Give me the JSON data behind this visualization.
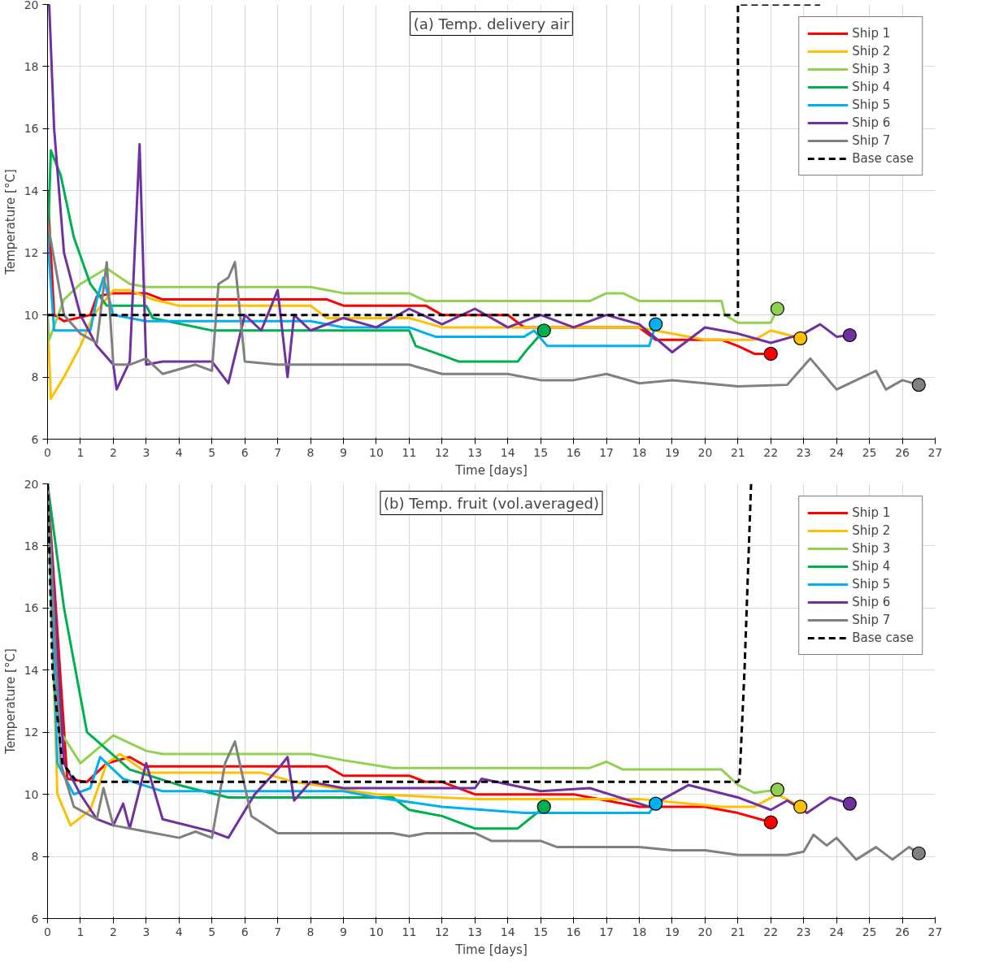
{
  "chart_data": [
    {
      "type": "line",
      "title": "(a) Temp. delivery air",
      "xlabel": "Time [days]",
      "ylabel": "Temperature [°C]",
      "xlim": [
        0,
        27
      ],
      "ylim": [
        6,
        20
      ],
      "xticks": [
        0,
        1,
        2,
        3,
        4,
        5,
        6,
        7,
        8,
        9,
        10,
        11,
        12,
        13,
        14,
        15,
        16,
        17,
        18,
        19,
        20,
        21,
        22,
        23,
        24,
        25,
        26,
        27
      ],
      "yticks": [
        6,
        8,
        10,
        12,
        14,
        16,
        18,
        20
      ],
      "grid": true,
      "legend": "top right",
      "series": [
        {
          "name": "Ship 1",
          "color": "#ff0000",
          "x": [
            0,
            0.2,
            0.5,
            1.3,
            1.5,
            2,
            3,
            3.5,
            8.5,
            9,
            11.5,
            12,
            14,
            14.5,
            18,
            18.5,
            20.5,
            21,
            21.5,
            22
          ],
          "values": [
            14,
            10,
            9.8,
            10,
            10.6,
            10.7,
            10.7,
            10.5,
            10.5,
            10.3,
            10.3,
            10,
            10,
            9.6,
            9.6,
            9.2,
            9.2,
            9,
            8.75,
            8.75
          ]
        },
        {
          "name": "Ship 2",
          "color": "#ffc000",
          "x": [
            0,
            0.1,
            0.5,
            1,
            1.4,
            2,
            2.5,
            3.2,
            4,
            8,
            8.5,
            11,
            12,
            18,
            20,
            21.5,
            22,
            22.9
          ],
          "values": [
            10,
            7.3,
            8,
            9,
            10,
            10.8,
            10.8,
            10.5,
            10.3,
            10.3,
            9.9,
            9.9,
            9.6,
            9.6,
            9.2,
            9.2,
            9.5,
            9.25
          ]
        },
        {
          "name": "Ship 3",
          "color": "#92d050",
          "x": [
            0,
            0.05,
            0.5,
            1,
            1.8,
            2.5,
            3,
            8,
            8.5,
            9,
            11,
            11.5,
            16.5,
            17,
            17.5,
            18,
            20.5,
            20.6,
            21,
            22,
            22.2
          ],
          "values": [
            10,
            9.2,
            10.5,
            11,
            11.5,
            11,
            10.9,
            10.9,
            10.8,
            10.7,
            10.7,
            10.45,
            10.45,
            10.7,
            10.7,
            10.45,
            10.45,
            10,
            9.75,
            9.75,
            10.2
          ]
        },
        {
          "name": "Ship 4",
          "color": "#00b050",
          "x": [
            0,
            0.1,
            0.4,
            0.8,
            1.3,
            1.8,
            3,
            3.2,
            5,
            11,
            11.2,
            12,
            12.5,
            14.3,
            14.6,
            15.1
          ],
          "values": [
            12,
            15.3,
            14.5,
            12.5,
            11,
            10.3,
            10.3,
            9.9,
            9.5,
            9.5,
            9,
            8.7,
            8.5,
            8.5,
            8.9,
            9.5
          ]
        },
        {
          "name": "Ship 5",
          "color": "#00b0f0",
          "x": [
            0,
            0.2,
            1.3,
            1.5,
            1.7,
            2,
            3,
            8,
            9,
            11,
            11.8,
            14.5,
            14.8,
            15.2,
            18.3,
            18.5
          ],
          "values": [
            12.5,
            9.5,
            9.5,
            10.5,
            11.2,
            10,
            9.8,
            9.8,
            9.6,
            9.6,
            9.3,
            9.3,
            9.5,
            9,
            9,
            9.7
          ]
        },
        {
          "name": "Ship 6",
          "color": "#7030a0",
          "x": [
            0,
            0.05,
            0.2,
            0.5,
            1,
            1.5,
            2,
            2.1,
            2.5,
            2.8,
            3,
            3.5,
            5,
            5.5,
            6,
            6.5,
            7,
            7.3,
            7.5,
            8,
            9,
            10,
            11,
            12,
            13,
            14,
            15,
            16,
            17,
            18,
            19,
            20,
            21,
            22,
            23,
            23.5,
            24,
            24.4
          ],
          "values": [
            20,
            20,
            16,
            12,
            10,
            9,
            8.4,
            7.6,
            8.5,
            15.5,
            8.4,
            8.5,
            8.5,
            7.8,
            10,
            9.5,
            10.8,
            8,
            10,
            9.5,
            9.9,
            9.6,
            10.2,
            9.7,
            10.2,
            9.6,
            10,
            9.6,
            10,
            9.7,
            8.8,
            9.6,
            9.4,
            9.1,
            9.4,
            9.7,
            9.3,
            9.35
          ]
        },
        {
          "name": "Ship 7",
          "color": "#808080",
          "x": [
            0,
            0.5,
            1,
            1.5,
            1.8,
            2,
            2.5,
            3,
            3.5,
            4.5,
            5,
            5.2,
            5.5,
            5.7,
            6,
            7,
            11,
            12,
            14,
            15,
            16,
            17,
            18,
            19,
            20,
            21,
            22.5,
            23.2,
            24,
            25.2,
            25.5,
            26,
            26.5
          ],
          "values": [
            13,
            10,
            9.4,
            9.1,
            11.7,
            8.4,
            8.4,
            8.6,
            8.1,
            8.4,
            8.2,
            11,
            11.2,
            11.7,
            8.5,
            8.4,
            8.4,
            8.1,
            8.1,
            7.9,
            7.9,
            8.1,
            7.8,
            7.9,
            7.8,
            7.7,
            7.75,
            8.6,
            7.6,
            8.2,
            7.6,
            7.9,
            7.75
          ]
        },
        {
          "name": "Base case",
          "color": "#000000",
          "line_style": "dashed",
          "x": [
            0,
            21,
            21,
            23.5
          ],
          "values": [
            10,
            10,
            20,
            20
          ]
        },
        {
          "type": "scatter",
          "marker": "circle",
          "x": [
            22,
            22.9,
            22.2,
            15.1,
            18.5,
            24.4,
            26.5
          ],
          "values": [
            8.75,
            9.25,
            10.2,
            9.5,
            9.7,
            9.35,
            7.75
          ],
          "colors": [
            "#ff0000",
            "#ffc000",
            "#92d050",
            "#00b050",
            "#00b0f0",
            "#7030a0",
            "#808080"
          ]
        }
      ]
    },
    {
      "type": "line",
      "title": "(b) Temp. fruit (vol.averaged)",
      "xlabel": "Time [days]",
      "ylabel": "Temperature [°C]",
      "xlim": [
        0,
        27
      ],
      "ylim": [
        6,
        20
      ],
      "xticks": [
        0,
        1,
        2,
        3,
        4,
        5,
        6,
        7,
        8,
        9,
        10,
        11,
        12,
        13,
        14,
        15,
        16,
        17,
        18,
        19,
        20,
        21,
        22,
        23,
        24,
        25,
        26,
        27
      ],
      "yticks": [
        6,
        8,
        10,
        12,
        14,
        16,
        18,
        20
      ],
      "grid": true,
      "legend": "top right",
      "series": [
        {
          "name": "Ship 1",
          "color": "#ff0000",
          "x": [
            0,
            0.6,
            1.2,
            1.8,
            2.5,
            3,
            8.5,
            9,
            11,
            11.5,
            12,
            13,
            15,
            16,
            17,
            18,
            20,
            21,
            22
          ],
          "values": [
            20,
            10.5,
            10.4,
            11,
            11.2,
            10.9,
            10.9,
            10.6,
            10.6,
            10.4,
            10.4,
            10,
            10,
            10,
            9.8,
            9.6,
            9.6,
            9.4,
            9.1
          ]
        },
        {
          "name": "Ship 2",
          "color": "#ffc000",
          "x": [
            0,
            0.3,
            0.7,
            1.3,
            1.8,
            2.2,
            3,
            6.5,
            7.5,
            10,
            13,
            18,
            20.5,
            21.5,
            22.2,
            22.9
          ],
          "values": [
            20,
            10,
            9,
            9.5,
            11,
            11.3,
            10.7,
            10.7,
            10.4,
            10,
            9.85,
            9.85,
            9.6,
            9.6,
            10,
            9.6
          ]
        },
        {
          "name": "Ship 3",
          "color": "#92d050",
          "x": [
            0,
            0.4,
            1,
            2,
            3,
            3.5,
            8,
            9,
            10.5,
            16.5,
            17,
            17.5,
            20.5,
            21,
            21.5,
            22.2
          ],
          "values": [
            20,
            12,
            11,
            11.9,
            11.4,
            11.3,
            11.3,
            11.1,
            10.85,
            10.85,
            11.05,
            10.8,
            10.8,
            10.3,
            10.05,
            10.15
          ]
        },
        {
          "name": "Ship 4",
          "color": "#00b050",
          "x": [
            0,
            0.5,
            1.2,
            2.5,
            4,
            5.5,
            10.5,
            11,
            12,
            13,
            14.3,
            15,
            15.1
          ],
          "values": [
            20,
            16,
            12,
            10.8,
            10.3,
            9.9,
            9.9,
            9.5,
            9.3,
            8.9,
            8.9,
            9.5,
            9.6
          ]
        },
        {
          "name": "Ship 5",
          "color": "#00b0f0",
          "x": [
            0,
            0.3,
            0.8,
            1.3,
            1.6,
            2.3,
            3.5,
            9,
            10,
            12,
            14.5,
            18.3,
            18.5
          ],
          "values": [
            20,
            11,
            10,
            10.2,
            11.2,
            10.5,
            10.1,
            10.1,
            9.9,
            9.6,
            9.4,
            9.4,
            9.7
          ]
        },
        {
          "name": "Ship 6",
          "color": "#7030a0",
          "x": [
            0,
            0.5,
            1,
            1.5,
            2,
            2.3,
            2.5,
            3,
            3.5,
            5,
            5.5,
            6.3,
            7,
            7.3,
            7.5,
            8,
            9,
            13,
            13.2,
            15,
            16.5,
            18.3,
            19.5,
            21,
            22,
            22.5,
            23.1,
            23.8,
            24.4
          ],
          "values": [
            20,
            11,
            10,
            9.2,
            9,
            9.7,
            8.9,
            11,
            9.2,
            8.8,
            8.6,
            10,
            10.8,
            11.2,
            9.8,
            10.4,
            10.2,
            10.2,
            10.5,
            10.1,
            10.2,
            9.6,
            10.3,
            9.9,
            9.5,
            9.8,
            9.4,
            9.9,
            9.7
          ]
        },
        {
          "name": "Ship 7",
          "color": "#808080",
          "x": [
            0,
            0.4,
            0.8,
            1.5,
            1.7,
            2,
            3,
            4,
            4.5,
            5,
            5.4,
            5.7,
            6.2,
            7,
            10.5,
            11,
            11.5,
            13,
            13.5,
            15,
            15.5,
            18,
            19,
            20,
            21,
            22.5,
            23,
            23.3,
            23.7,
            24,
            24.6,
            25.2,
            25.7,
            26.2,
            26.5
          ],
          "values": [
            20,
            11,
            9.6,
            9.2,
            10.2,
            9,
            8.8,
            8.6,
            8.8,
            8.6,
            11,
            11.7,
            9.3,
            8.75,
            8.75,
            8.65,
            8.75,
            8.75,
            8.5,
            8.5,
            8.3,
            8.3,
            8.2,
            8.2,
            8.05,
            8.05,
            8.15,
            8.7,
            8.35,
            8.6,
            7.9,
            8.3,
            7.9,
            8.3,
            8.1
          ]
        },
        {
          "name": "Base case",
          "color": "#000000",
          "line_style": "dashed",
          "x": [
            0,
            0.15,
            0.45,
            0.9,
            21,
            21.05,
            21.2,
            21.4
          ],
          "values": [
            20,
            14,
            11,
            10.4,
            10.4,
            10.5,
            14,
            20
          ]
        },
        {
          "type": "scatter",
          "marker": "circle",
          "x": [
            22,
            22.9,
            22.2,
            15.1,
            18.5,
            24.4,
            26.5
          ],
          "values": [
            9.1,
            9.6,
            10.15,
            9.6,
            9.7,
            9.7,
            8.1
          ],
          "colors": [
            "#ff0000",
            "#ffc000",
            "#92d050",
            "#00b050",
            "#00b0f0",
            "#7030a0",
            "#808080"
          ]
        }
      ]
    }
  ]
}
